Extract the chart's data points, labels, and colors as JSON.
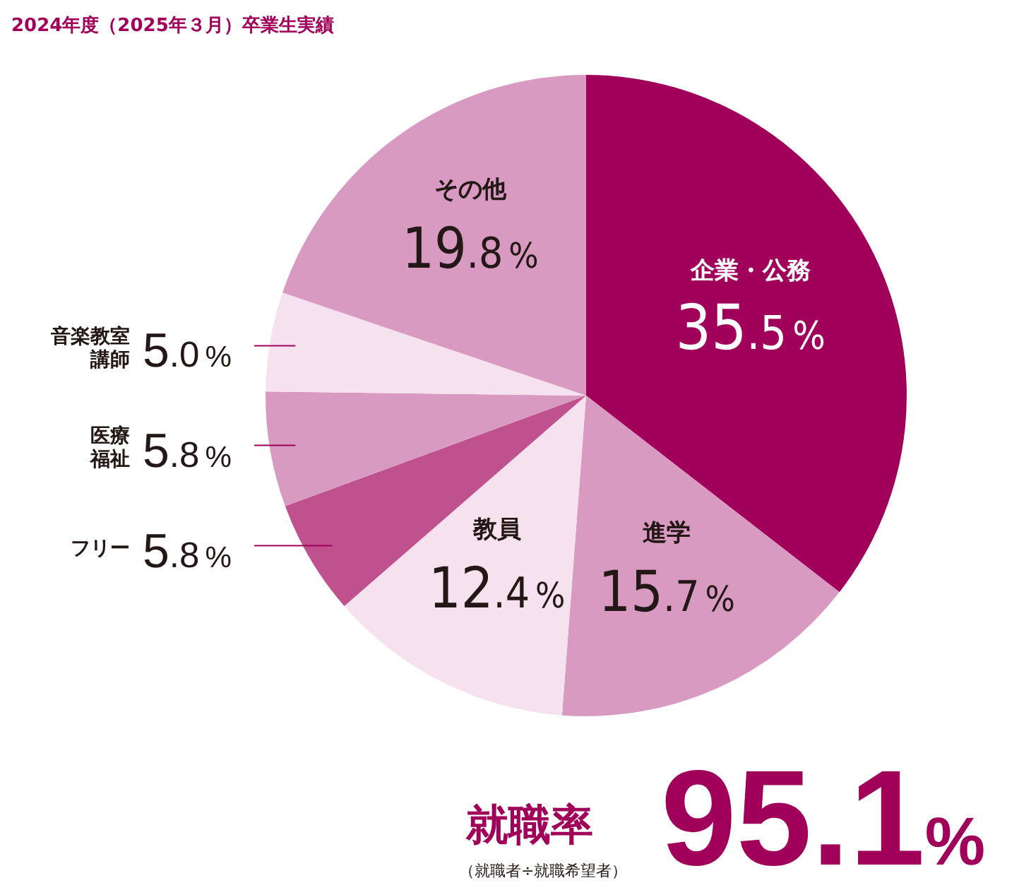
{
  "chart_data": {
    "type": "pie",
    "title": "2024年度（2025年３月）卒業生実績",
    "categories": [
      "企業・公務",
      "進学",
      "教員",
      "フリー",
      "医療福祉",
      "音楽教室講師",
      "その他"
    ],
    "values": [
      35.5,
      15.7,
      12.4,
      5.8,
      5.8,
      5.0,
      19.8
    ],
    "colors": [
      "#a0005a",
      "#d99ac2",
      "#f6e2ee",
      "#c0518f",
      "#d99ac2",
      "#f6e2ee",
      "#d99ac2"
    ],
    "value_labels": [
      "35.5%",
      "15.7%",
      "12.4%",
      "5.8%",
      "5.8%",
      "5.0%",
      "19.8%"
    ],
    "annotations": [
      "就職率",
      "（就職者÷就職希望者）",
      "95.1%"
    ]
  }
}
